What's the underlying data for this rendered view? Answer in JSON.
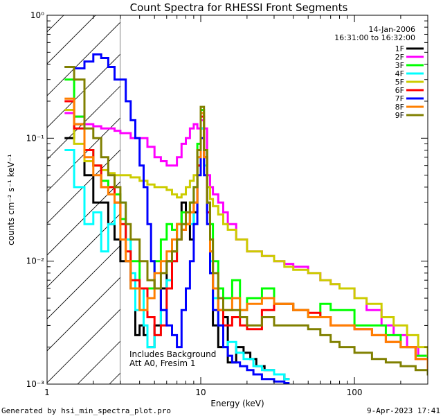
{
  "chart_data": {
    "type": "line",
    "title": "Count Spectra for RHESSI Front Segments",
    "xlabel": "Energy (keV)",
    "ylabel": "counts cm⁻² s⁻¹ keV⁻¹",
    "xscale": "log",
    "yscale": "log",
    "xlim": [
      1,
      300
    ],
    "ylim": [
      0.001,
      1
    ],
    "x_tick_labels": [
      "1",
      "10",
      "100"
    ],
    "y_tick_labels": [
      "10⁻³",
      "10⁻²",
      "10⁻¹",
      "10⁰"
    ],
    "date": "14-Jan-2006",
    "time_range": "16:31:00 to 16:32:00",
    "shaded_region_xmax_kev": 3,
    "annotation_lines": [
      "Includes Background",
      "Att A0, Fresim 1"
    ],
    "footer_left": "Generated by hsi_min_spectra_plot.pro",
    "footer_right": "9-Apr-2023 17:41",
    "series": [
      {
        "name": "1F",
        "color": "#000000",
        "x": [
          1.3,
          1.5,
          1.75,
          2.0,
          2.25,
          2.5,
          2.75,
          3.0,
          3.25,
          3.5,
          3.75,
          4.0,
          4.25,
          4.5,
          5.0,
          5.5,
          6.0,
          6.5,
          7.0,
          7.5,
          8.0,
          8.5,
          9.0,
          9.5,
          10.0,
          10.5,
          11.0,
          11.5,
          12.0,
          13.0,
          14.0,
          15.0,
          17.0,
          19.0,
          21.0,
          23.0,
          26.0,
          30.0,
          35.0
        ],
        "values": [
          0.1,
          0.13,
          0.05,
          0.03,
          0.03,
          0.02,
          0.015,
          0.01,
          0.01,
          0.006,
          0.0025,
          0.003,
          0.0025,
          0.002,
          0.003,
          0.006,
          0.01,
          0.012,
          0.02,
          0.03,
          0.02,
          0.015,
          0.025,
          0.06,
          0.12,
          0.07,
          0.03,
          0.008,
          0.003,
          0.002,
          0.0035,
          0.0015,
          0.002,
          0.0018,
          0.0016,
          0.0014,
          0.0013,
          0.0012,
          0.0011
        ]
      },
      {
        "name": "2F",
        "color": "#ff00ff",
        "x": [
          1.3,
          1.5,
          1.75,
          2.0,
          2.25,
          2.5,
          2.75,
          3.0,
          3.5,
          4.0,
          4.5,
          5.0,
          5.5,
          6.0,
          6.5,
          7.0,
          7.5,
          8.0,
          8.5,
          9.0,
          9.5,
          10.0,
          10.5,
          11.0,
          11.5,
          12.0,
          13.0,
          14.0,
          15.0,
          17.0,
          20.0,
          25.0,
          30.0,
          35.0,
          40.0,
          50.0,
          60.0,
          70.0,
          80.0,
          100.0,
          120.0,
          150.0,
          180.0,
          220.0,
          260.0,
          300.0
        ],
        "values": [
          0.16,
          0.15,
          0.13,
          0.125,
          0.12,
          0.12,
          0.115,
          0.11,
          0.1,
          0.1,
          0.085,
          0.07,
          0.065,
          0.06,
          0.06,
          0.07,
          0.09,
          0.1,
          0.12,
          0.13,
          0.12,
          0.14,
          0.12,
          0.05,
          0.04,
          0.035,
          0.03,
          0.025,
          0.02,
          0.015,
          0.012,
          0.011,
          0.01,
          0.0095,
          0.009,
          0.008,
          0.007,
          0.0065,
          0.006,
          0.005,
          0.004,
          0.003,
          0.0025,
          0.002,
          0.0017,
          0.0015
        ]
      },
      {
        "name": "3F",
        "color": "#00ff00",
        "x": [
          1.3,
          1.5,
          1.75,
          2.0,
          2.25,
          2.5,
          2.75,
          3.0,
          3.25,
          3.5,
          4.0,
          4.5,
          5.0,
          5.5,
          6.0,
          6.5,
          7.0,
          7.5,
          8.0,
          8.5,
          9.0,
          9.5,
          10.0,
          10.5,
          11.0,
          11.5,
          12.0,
          13.0,
          14.0,
          16.0,
          18.0,
          20.0,
          25.0,
          30.0,
          40.0,
          50.0,
          60.0,
          70.0,
          80.0,
          100.0,
          130.0,
          160.0,
          200.0,
          250.0,
          300.0
        ],
        "values": [
          0.3,
          0.15,
          0.08,
          0.06,
          0.045,
          0.04,
          0.035,
          0.022,
          0.015,
          0.01,
          0.006,
          0.006,
          0.01,
          0.015,
          0.02,
          0.018,
          0.02,
          0.025,
          0.02,
          0.03,
          0.04,
          0.09,
          0.17,
          0.08,
          0.03,
          0.02,
          0.01,
          0.006,
          0.005,
          0.007,
          0.004,
          0.005,
          0.006,
          0.0045,
          0.004,
          0.0035,
          0.0045,
          0.004,
          0.004,
          0.003,
          0.003,
          0.0025,
          0.002,
          0.0017,
          0.0015
        ]
      },
      {
        "name": "4F",
        "color": "#00ffff",
        "x": [
          1.3,
          1.5,
          1.75,
          2.0,
          2.25,
          2.5,
          2.75,
          3.0,
          3.25,
          3.5,
          3.75,
          4.0,
          4.25,
          4.5,
          5.0,
          5.5,
          6.0,
          6.5,
          7.0,
          7.5,
          8.0,
          8.5,
          9.0,
          9.5,
          10.0,
          10.5,
          11.0,
          11.5,
          12.0,
          13.0,
          14.0,
          15.0,
          17.0,
          19.0,
          22.0,
          25.0,
          30.0,
          35.0
        ],
        "values": [
          0.08,
          0.04,
          0.02,
          0.025,
          0.012,
          0.02,
          0.03,
          0.03,
          0.015,
          0.008,
          0.004,
          0.006,
          0.003,
          0.002,
          0.0025,
          0.004,
          0.007,
          0.01,
          0.015,
          0.02,
          0.025,
          0.02,
          0.04,
          0.07,
          0.12,
          0.06,
          0.025,
          0.01,
          0.005,
          0.003,
          0.002,
          0.0022,
          0.0018,
          0.0016,
          0.0014,
          0.0013,
          0.0012,
          0.0011
        ]
      },
      {
        "name": "5F",
        "color": "#cccc00",
        "x": [
          1.3,
          1.5,
          1.75,
          2.0,
          2.25,
          2.5,
          2.75,
          3.0,
          3.5,
          4.0,
          4.5,
          5.0,
          5.5,
          6.0,
          6.5,
          7.0,
          7.5,
          8.0,
          8.5,
          9.0,
          9.5,
          10.0,
          10.5,
          11.0,
          11.5,
          12.0,
          13.0,
          14.0,
          15.0,
          17.0,
          20.0,
          25.0,
          30.0,
          35.0,
          40.0,
          50.0,
          60.0,
          70.0,
          80.0,
          100.0,
          120.0,
          150.0,
          180.0,
          220.0,
          260.0,
          300.0
        ],
        "values": [
          0.17,
          0.09,
          0.065,
          0.06,
          0.055,
          0.052,
          0.05,
          0.05,
          0.048,
          0.045,
          0.042,
          0.04,
          0.04,
          0.038,
          0.035,
          0.033,
          0.035,
          0.04,
          0.045,
          0.05,
          0.06,
          0.1,
          0.08,
          0.04,
          0.032,
          0.028,
          0.024,
          0.02,
          0.018,
          0.015,
          0.012,
          0.011,
          0.01,
          0.009,
          0.0085,
          0.008,
          0.007,
          0.0065,
          0.006,
          0.005,
          0.0045,
          0.0035,
          0.003,
          0.0025,
          0.002,
          0.0017
        ]
      },
      {
        "name": "6F",
        "color": "#ff0000",
        "x": [
          1.3,
          1.5,
          1.75,
          2.0,
          2.25,
          2.5,
          2.75,
          3.0,
          3.25,
          3.5,
          4.0,
          4.5,
          5.0,
          5.5,
          6.0,
          6.5,
          7.0,
          7.5,
          8.0,
          8.5,
          9.0,
          9.5,
          10.0,
          10.5,
          11.0,
          11.5,
          12.0,
          13.0,
          14.0,
          16.0,
          18.0,
          20.0,
          25.0,
          30.0,
          40.0,
          50.0,
          60.0,
          70.0,
          80.0,
          100.0,
          130.0,
          160.0,
          200.0,
          250.0,
          300.0
        ],
        "values": [
          0.2,
          0.12,
          0.08,
          0.06,
          0.04,
          0.04,
          0.03,
          0.02,
          0.012,
          0.007,
          0.006,
          0.0035,
          0.0025,
          0.003,
          0.006,
          0.01,
          0.015,
          0.018,
          0.02,
          0.025,
          0.03,
          0.06,
          0.15,
          0.07,
          0.025,
          0.012,
          0.006,
          0.004,
          0.003,
          0.0035,
          0.003,
          0.0028,
          0.004,
          0.0045,
          0.004,
          0.0038,
          0.0035,
          0.003,
          0.003,
          0.0028,
          0.0025,
          0.0022,
          0.002,
          0.0016,
          0.0013
        ]
      },
      {
        "name": "7F",
        "color": "#0000ff",
        "x": [
          1.3,
          1.5,
          1.75,
          2.0,
          2.25,
          2.5,
          2.75,
          3.0,
          3.25,
          3.5,
          3.75,
          4.0,
          4.25,
          4.5,
          4.75,
          5.0,
          5.5,
          6.0,
          6.5,
          7.0,
          7.5,
          8.0,
          8.5,
          9.0,
          9.5,
          10.0,
          10.5,
          11.0,
          11.5,
          12.0,
          13.0,
          14.0,
          15.0,
          16.0,
          18.0,
          20.0,
          22.0,
          25.0,
          30.0,
          35.0
        ],
        "values": [
          0.38,
          0.37,
          0.42,
          0.48,
          0.45,
          0.38,
          0.3,
          0.3,
          0.2,
          0.14,
          0.1,
          0.06,
          0.04,
          0.02,
          0.01,
          0.006,
          0.004,
          0.003,
          0.0025,
          0.002,
          0.004,
          0.006,
          0.01,
          0.02,
          0.05,
          0.1,
          0.05,
          0.02,
          0.008,
          0.004,
          0.003,
          0.002,
          0.0017,
          0.0015,
          0.0014,
          0.0013,
          0.0012,
          0.0011,
          0.00105,
          0.00102
        ]
      },
      {
        "name": "8F",
        "color": "#ff7f00",
        "x": [
          1.3,
          1.5,
          1.75,
          2.0,
          2.25,
          2.5,
          2.75,
          3.0,
          3.25,
          3.5,
          4.0,
          4.5,
          5.0,
          5.5,
          6.0,
          6.5,
          7.0,
          7.5,
          8.0,
          8.5,
          9.0,
          9.5,
          10.0,
          10.5,
          11.0,
          11.5,
          12.0,
          13.0,
          14.0,
          16.0,
          18.0,
          20.0,
          25.0,
          30.0,
          40.0,
          50.0,
          60.0,
          70.0,
          80.0,
          100.0,
          130.0,
          160.0,
          200.0,
          250.0,
          300.0
        ],
        "values": [
          0.21,
          0.13,
          0.07,
          0.05,
          0.04,
          0.035,
          0.03,
          0.015,
          0.01,
          0.006,
          0.004,
          0.005,
          0.008,
          0.01,
          0.012,
          0.015,
          0.02,
          0.018,
          0.02,
          0.025,
          0.03,
          0.07,
          0.16,
          0.07,
          0.03,
          0.012,
          0.006,
          0.004,
          0.004,
          0.005,
          0.004,
          0.0045,
          0.005,
          0.0045,
          0.004,
          0.0035,
          0.0035,
          0.003,
          0.003,
          0.0028,
          0.0025,
          0.0022,
          0.002,
          0.0016,
          0.0013
        ]
      },
      {
        "name": "9F",
        "color": "#808000",
        "x": [
          1.3,
          1.5,
          1.75,
          2.0,
          2.25,
          2.5,
          2.75,
          3.0,
          3.25,
          3.5,
          4.0,
          4.5,
          5.0,
          5.5,
          6.0,
          6.5,
          7.0,
          7.5,
          8.0,
          8.5,
          9.0,
          9.5,
          10.0,
          10.5,
          11.0,
          11.5,
          12.0,
          13.0,
          14.0,
          16.0,
          18.0,
          20.0,
          25.0,
          30.0,
          40.0,
          50.0,
          60.0,
          70.0,
          80.0,
          100.0,
          130.0,
          160.0,
          200.0,
          250.0,
          300.0
        ],
        "values": [
          0.38,
          0.3,
          0.12,
          0.1,
          0.07,
          0.05,
          0.04,
          0.03,
          0.02,
          0.015,
          0.01,
          0.007,
          0.006,
          0.008,
          0.01,
          0.012,
          0.015,
          0.02,
          0.025,
          0.03,
          0.04,
          0.08,
          0.18,
          0.08,
          0.03,
          0.015,
          0.008,
          0.005,
          0.004,
          0.004,
          0.0035,
          0.003,
          0.0035,
          0.003,
          0.003,
          0.0028,
          0.0025,
          0.0022,
          0.002,
          0.0018,
          0.0016,
          0.0015,
          0.0014,
          0.0013,
          0.0012
        ]
      }
    ]
  }
}
